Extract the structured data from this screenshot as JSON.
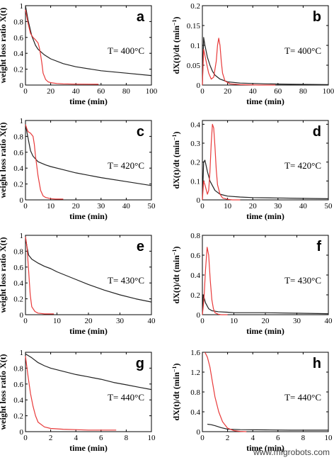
{
  "watermark": "www.mfgrobots.com",
  "colors": {
    "black_series": "#222222",
    "red_series": "#e83a3a"
  },
  "chart_data": [
    {
      "panel": "a",
      "type": "line",
      "temperature": "T= 400°C",
      "xlabel": "time (min)",
      "ylabel": "weight loss ratio X(t)",
      "xlim": [
        0,
        100
      ],
      "ylim": [
        0,
        1
      ],
      "xticks": [
        0,
        20,
        40,
        60,
        80,
        100
      ],
      "yticks": [
        0,
        0.2,
        0.4,
        0.6,
        0.8,
        1
      ],
      "xtick_labels": [
        "0",
        "20",
        "40",
        "60",
        "80",
        "100"
      ],
      "ytick_labels": [
        "0",
        "0.2",
        "0.4",
        "0.6",
        "0.8",
        "1"
      ],
      "series": [
        {
          "color": "#222222",
          "x": [
            0,
            2,
            5,
            8,
            10,
            15,
            20,
            30,
            40,
            60,
            80,
            100
          ],
          "y": [
            1.0,
            0.82,
            0.62,
            0.5,
            0.45,
            0.38,
            0.33,
            0.27,
            0.23,
            0.18,
            0.15,
            0.12
          ]
        },
        {
          "color": "#e83a3a",
          "x": [
            0,
            2,
            4,
            6,
            8,
            10,
            11,
            12,
            13,
            14,
            16,
            18,
            20,
            25,
            30,
            40,
            58
          ],
          "y": [
            0.95,
            0.78,
            0.65,
            0.6,
            0.57,
            0.53,
            0.47,
            0.38,
            0.28,
            0.15,
            0.07,
            0.04,
            0.03,
            0.02,
            0.015,
            0.012,
            0.01
          ]
        }
      ]
    },
    {
      "panel": "b",
      "type": "line",
      "temperature": "T= 400°C",
      "xlabel": "time (min)",
      "ylabel": "dX(t)/dt (min",
      "xlim": [
        0,
        100
      ],
      "ylim": [
        0,
        0.2
      ],
      "xticks": [
        0,
        20,
        40,
        60,
        80,
        100
      ],
      "yticks": [
        0,
        0.05,
        0.1,
        0.15,
        0.2
      ],
      "xtick_labels": [
        "0",
        "20",
        "40",
        "60",
        "80",
        "100"
      ],
      "ytick_labels": [
        "0",
        "0.05",
        "0.1",
        "0.15",
        "0.2"
      ],
      "series": [
        {
          "color": "#222222",
          "x": [
            0,
            1,
            2,
            4,
            6,
            8,
            10,
            14,
            20,
            30,
            50,
            70,
            100
          ],
          "y": [
            0.0,
            0.12,
            0.1,
            0.07,
            0.05,
            0.035,
            0.025,
            0.015,
            0.008,
            0.005,
            0.003,
            0.002,
            0.001
          ]
        },
        {
          "color": "#e83a3a",
          "x": [
            0,
            1,
            3,
            5,
            7,
            9,
            11,
            12,
            13,
            14,
            15,
            16,
            18,
            22,
            30,
            45,
            58
          ],
          "y": [
            0.0,
            0.09,
            0.06,
            0.03,
            0.015,
            0.02,
            0.06,
            0.1,
            0.118,
            0.1,
            0.06,
            0.03,
            0.01,
            0.003,
            0.001,
            0.0,
            0.0
          ]
        }
      ]
    },
    {
      "panel": "c",
      "type": "line",
      "temperature": "T= 420°C",
      "xlabel": "time (min)",
      "ylabel": "weight loss ratio X(t)",
      "xlim": [
        0,
        50
      ],
      "ylim": [
        0,
        1
      ],
      "xticks": [
        0,
        10,
        20,
        30,
        40,
        50
      ],
      "yticks": [
        0,
        0.2,
        0.4,
        0.6,
        0.8,
        1
      ],
      "xtick_labels": [
        "0",
        "10",
        "20",
        "30",
        "40",
        "50"
      ],
      "ytick_labels": [
        "0",
        "0.2",
        "0.4",
        "0.6",
        "0.8",
        "1"
      ],
      "series": [
        {
          "color": "#222222",
          "x": [
            0,
            1,
            2,
            3,
            5,
            8,
            10,
            15,
            20,
            30,
            40,
            50
          ],
          "y": [
            0.95,
            0.78,
            0.62,
            0.55,
            0.48,
            0.44,
            0.42,
            0.38,
            0.34,
            0.28,
            0.23,
            0.18
          ]
        },
        {
          "color": "#e83a3a",
          "x": [
            0,
            0.5,
            1,
            2,
            3,
            3.5,
            4,
            5,
            6,
            7,
            8,
            10,
            12,
            15
          ],
          "y": [
            0.95,
            0.9,
            0.86,
            0.84,
            0.8,
            0.7,
            0.55,
            0.3,
            0.12,
            0.05,
            0.03,
            0.015,
            0.01,
            0.01
          ]
        }
      ]
    },
    {
      "panel": "d",
      "type": "line",
      "temperature": "T= 420°C",
      "xlabel": "time (min)",
      "ylabel": "dX(t)/dt (min",
      "xlim": [
        0,
        50
      ],
      "ylim": [
        0,
        0.42
      ],
      "xticks": [
        0,
        10,
        20,
        30,
        40,
        50
      ],
      "yticks": [
        0,
        0.1,
        0.2,
        0.3,
        0.4
      ],
      "xtick_labels": [
        "0",
        "10",
        "20",
        "30",
        "40",
        "50"
      ],
      "ytick_labels": [
        "0",
        "0.1",
        "0.2",
        "0.3",
        "0.4"
      ],
      "series": [
        {
          "color": "#222222",
          "x": [
            0,
            0.5,
            1,
            2,
            3,
            5,
            7,
            10,
            15,
            20,
            30,
            40,
            50
          ],
          "y": [
            0.0,
            0.2,
            0.21,
            0.15,
            0.1,
            0.05,
            0.03,
            0.02,
            0.015,
            0.012,
            0.01,
            0.008,
            0.006
          ]
        },
        {
          "color": "#e83a3a",
          "x": [
            0,
            0.5,
            1,
            2,
            2.5,
            3,
            3.5,
            4,
            4.5,
            5,
            5.5,
            6,
            7,
            8,
            10,
            12,
            15
          ],
          "y": [
            0.0,
            0.1,
            0.08,
            0.03,
            0.05,
            0.15,
            0.3,
            0.4,
            0.38,
            0.28,
            0.16,
            0.08,
            0.03,
            0.01,
            0.003,
            0.0,
            0.0
          ]
        }
      ]
    },
    {
      "panel": "e",
      "type": "line",
      "temperature": "T= 430°C",
      "xlabel": "time (min)",
      "ylabel": "weight loss ratio X(t)",
      "xlim": [
        0,
        40
      ],
      "ylim": [
        0,
        1
      ],
      "xticks": [
        0,
        10,
        20,
        30,
        40
      ],
      "yticks": [
        0,
        0.2,
        0.4,
        0.6,
        0.8,
        1
      ],
      "xtick_labels": [
        "0",
        "10",
        "20",
        "30",
        "40"
      ],
      "ytick_labels": [
        "0",
        "0.2",
        "0.4",
        "0.6",
        "0.8",
        "1"
      ],
      "series": [
        {
          "color": "#222222",
          "x": [
            0,
            0.5,
            1,
            2,
            4,
            6,
            8,
            10,
            15,
            20,
            25,
            30,
            35,
            40
          ],
          "y": [
            0.98,
            0.85,
            0.75,
            0.7,
            0.65,
            0.61,
            0.58,
            0.54,
            0.46,
            0.38,
            0.31,
            0.25,
            0.2,
            0.16
          ]
        },
        {
          "color": "#e83a3a",
          "x": [
            0,
            0.5,
            1,
            1.5,
            2,
            3,
            4,
            5,
            6,
            8,
            9
          ],
          "y": [
            0.98,
            0.85,
            0.55,
            0.25,
            0.1,
            0.04,
            0.02,
            0.015,
            0.01,
            0.01,
            0.01
          ]
        }
      ]
    },
    {
      "panel": "f",
      "type": "line",
      "temperature": "T= 430°C",
      "xlabel": "time (min)",
      "ylabel": "dX(t)/dt (min",
      "xlim": [
        0,
        40
      ],
      "ylim": [
        0,
        0.8
      ],
      "xticks": [
        0,
        10,
        20,
        30,
        40
      ],
      "yticks": [
        0,
        0.2,
        0.4,
        0.6,
        0.8
      ],
      "xtick_labels": [
        "0",
        "10",
        "20",
        "30",
        "40"
      ],
      "ytick_labels": [
        "0",
        "0.2",
        "0.4",
        "0.6",
        "0.8"
      ],
      "series": [
        {
          "color": "#222222",
          "x": [
            0,
            0.3,
            1,
            2,
            3,
            5,
            8,
            10,
            20,
            30,
            40
          ],
          "y": [
            0.0,
            0.2,
            0.12,
            0.06,
            0.04,
            0.03,
            0.025,
            0.02,
            0.02,
            0.015,
            0.01
          ]
        },
        {
          "color": "#e83a3a",
          "x": [
            0,
            0.5,
            1,
            1.5,
            2,
            2.5,
            3,
            3.5,
            4,
            5,
            6,
            8
          ],
          "y": [
            0.0,
            0.15,
            0.45,
            0.68,
            0.6,
            0.35,
            0.15,
            0.06,
            0.02,
            0.005,
            0.0,
            0.0
          ]
        }
      ]
    },
    {
      "panel": "g",
      "type": "line",
      "temperature": "T= 440°C",
      "xlabel": "time (min)",
      "ylabel": "weight loss ratio X(t)",
      "xlim": [
        0,
        10
      ],
      "ylim": [
        0,
        1
      ],
      "xticks": [
        0,
        2,
        4,
        6,
        8,
        10
      ],
      "yticks": [
        0,
        0.2,
        0.4,
        0.6,
        0.8,
        1
      ],
      "xtick_labels": [
        "0",
        "2",
        "4",
        "6",
        "8",
        "10"
      ],
      "ytick_labels": [
        "0",
        "0.2",
        "0.4",
        "0.6",
        "0.8",
        "1"
      ],
      "series": [
        {
          "color": "#222222",
          "x": [
            0,
            0.5,
            1,
            1.5,
            2,
            3,
            4,
            5,
            6,
            7,
            8,
            9,
            10
          ],
          "y": [
            0.98,
            0.93,
            0.87,
            0.83,
            0.8,
            0.76,
            0.72,
            0.69,
            0.66,
            0.62,
            0.59,
            0.56,
            0.53
          ]
        },
        {
          "color": "#e83a3a",
          "x": [
            0,
            0.2,
            0.4,
            0.6,
            0.8,
            1,
            1.5,
            2,
            3,
            4,
            5,
            6,
            7.2
          ],
          "y": [
            0.95,
            0.7,
            0.48,
            0.32,
            0.2,
            0.12,
            0.06,
            0.04,
            0.03,
            0.025,
            0.02,
            0.02,
            0.02
          ]
        }
      ]
    },
    {
      "panel": "h",
      "type": "line",
      "temperature": "T= 440°C",
      "xlabel": "time (min)",
      "ylabel": "dX(t)/dt (min",
      "xlim": [
        0,
        10
      ],
      "ylim": [
        0,
        1.6
      ],
      "xticks": [
        0,
        2,
        4,
        6,
        8,
        10
      ],
      "yticks": [
        0,
        0.4,
        0.8,
        1.2,
        1.6
      ],
      "xtick_labels": [
        "0",
        "2",
        "4",
        "6",
        "8",
        "10"
      ],
      "ytick_labels": [
        "0",
        "0.4",
        "0.8",
        "1.2",
        "1.6"
      ],
      "series": [
        {
          "color": "#222222",
          "x": [
            0.4,
            0.7,
            1,
            1.5,
            2,
            3,
            5,
            7,
            10
          ],
          "y": [
            0.15,
            0.14,
            0.12,
            0.08,
            0.05,
            0.04,
            0.035,
            0.03,
            0.03
          ]
        },
        {
          "color": "#e83a3a",
          "x": [
            0.2,
            0.4,
            0.6,
            0.8,
            1,
            1.3,
            1.6,
            2,
            2.5,
            3,
            3.5
          ],
          "y": [
            1.6,
            1.5,
            1.3,
            1.0,
            0.7,
            0.4,
            0.2,
            0.07,
            0.02,
            0.005,
            0.0
          ]
        }
      ]
    }
  ]
}
